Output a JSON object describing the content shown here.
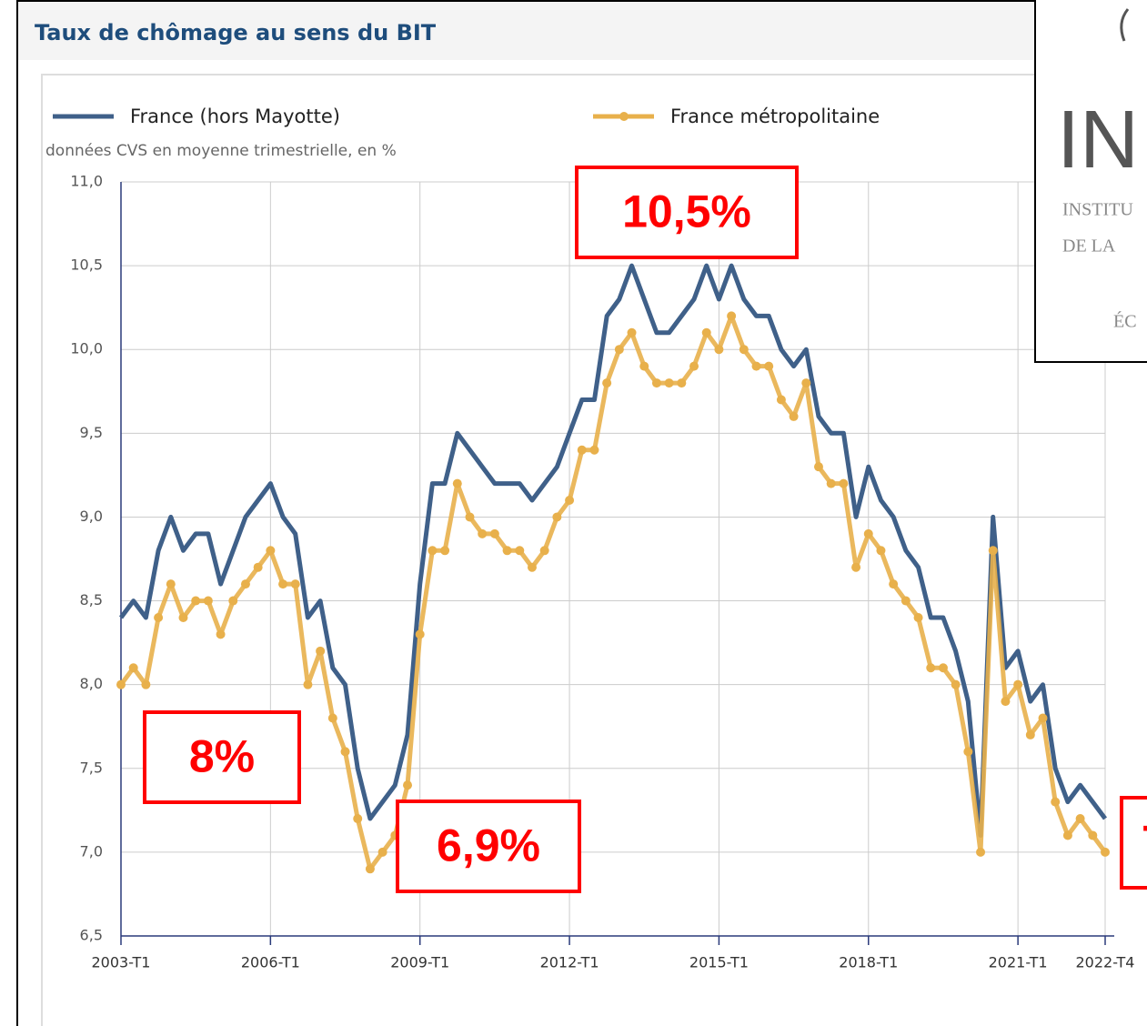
{
  "chart_data": {
    "type": "line",
    "title": "Taux de chômage au sens du BIT",
    "subtitle": "données CVS en moyenne trimestrielle, en %",
    "categories": [
      "2003-T1",
      null,
      null,
      null,
      null,
      null,
      null,
      null,
      null,
      null,
      null,
      null,
      "2006-T1",
      null,
      null,
      null,
      null,
      null,
      null,
      null,
      null,
      null,
      null,
      null,
      "2009-T1",
      null,
      null,
      null,
      null,
      null,
      null,
      null,
      null,
      null,
      null,
      null,
      "2012-T1",
      null,
      null,
      null,
      null,
      null,
      null,
      null,
      null,
      null,
      null,
      null,
      "2015-T1",
      null,
      null,
      null,
      null,
      null,
      null,
      null,
      null,
      null,
      null,
      null,
      "2018-T1",
      null,
      null,
      null,
      null,
      null,
      null,
      null,
      null,
      null,
      null,
      null,
      "2021-T1",
      null,
      null,
      null,
      null,
      null,
      null,
      "2022-T4"
    ],
    "series": [
      {
        "name": "France (hors Mayotte)",
        "color": "#3f6089",
        "markers": false,
        "values": [
          8.4,
          8.5,
          8.4,
          8.8,
          9.0,
          8.8,
          8.9,
          8.9,
          8.6,
          8.8,
          9.0,
          9.1,
          9.2,
          9.0,
          8.9,
          8.4,
          8.5,
          8.1,
          8.0,
          7.5,
          7.2,
          7.3,
          7.4,
          7.7,
          8.6,
          9.2,
          9.2,
          9.5,
          9.4,
          9.3,
          9.2,
          9.2,
          9.2,
          9.1,
          9.2,
          9.3,
          9.5,
          9.7,
          9.7,
          10.2,
          10.3,
          10.5,
          10.3,
          10.1,
          10.1,
          10.2,
          10.3,
          10.5,
          10.3,
          10.5,
          10.3,
          10.2,
          10.2,
          10.0,
          9.9,
          10.0,
          9.6,
          9.5,
          9.5,
          9.0,
          9.3,
          9.1,
          9.0,
          8.8,
          8.7,
          8.4,
          8.4,
          8.2,
          7.9,
          7.1,
          9.0,
          8.1,
          8.2,
          7.9,
          8.0,
          7.5,
          7.3,
          7.4,
          7.3,
          7.2
        ]
      },
      {
        "name": "France métropolitaine",
        "color": "#e8b04b",
        "markers": true,
        "values": [
          8.0,
          8.1,
          8.0,
          8.4,
          8.6,
          8.4,
          8.5,
          8.5,
          8.3,
          8.5,
          8.6,
          8.7,
          8.8,
          8.6,
          8.6,
          8.0,
          8.2,
          7.8,
          7.6,
          7.2,
          6.9,
          7.0,
          7.1,
          7.4,
          8.3,
          8.8,
          8.8,
          9.2,
          9.0,
          8.9,
          8.9,
          8.8,
          8.8,
          8.7,
          8.8,
          9.0,
          9.1,
          9.4,
          9.4,
          9.8,
          10.0,
          10.1,
          9.9,
          9.8,
          9.8,
          9.8,
          9.9,
          10.1,
          10.0,
          10.2,
          10.0,
          9.9,
          9.9,
          9.7,
          9.6,
          9.8,
          9.3,
          9.2,
          9.2,
          8.7,
          8.9,
          8.8,
          8.6,
          8.5,
          8.4,
          8.1,
          8.1,
          8.0,
          7.6,
          7.0,
          8.8,
          7.9,
          8.0,
          7.7,
          7.8,
          7.3,
          7.1,
          7.2,
          7.1,
          7.0
        ]
      }
    ],
    "ylim": [
      6.5,
      11.0
    ],
    "yticks": [
      {
        "value": 6.5,
        "label": "6,5"
      },
      {
        "value": 7.0,
        "label": "7,0"
      },
      {
        "value": 7.5,
        "label": "7,5"
      },
      {
        "value": 8.0,
        "label": "8,0"
      },
      {
        "value": 8.5,
        "label": "8,5"
      },
      {
        "value": 9.0,
        "label": "9,0"
      },
      {
        "value": 9.5,
        "label": "9,5"
      },
      {
        "value": 10.0,
        "label": "10,0"
      },
      {
        "value": 10.5,
        "label": "10,5"
      },
      {
        "value": 11.0,
        "label": "11,0"
      }
    ],
    "grid": true,
    "annotations": [
      "10,5%",
      "8%",
      "6,9%",
      "7"
    ]
  },
  "logo": {
    "letters": "IN",
    "line1": "INSTITU",
    "line2": "DE LA",
    "line3": "ÉC"
  }
}
